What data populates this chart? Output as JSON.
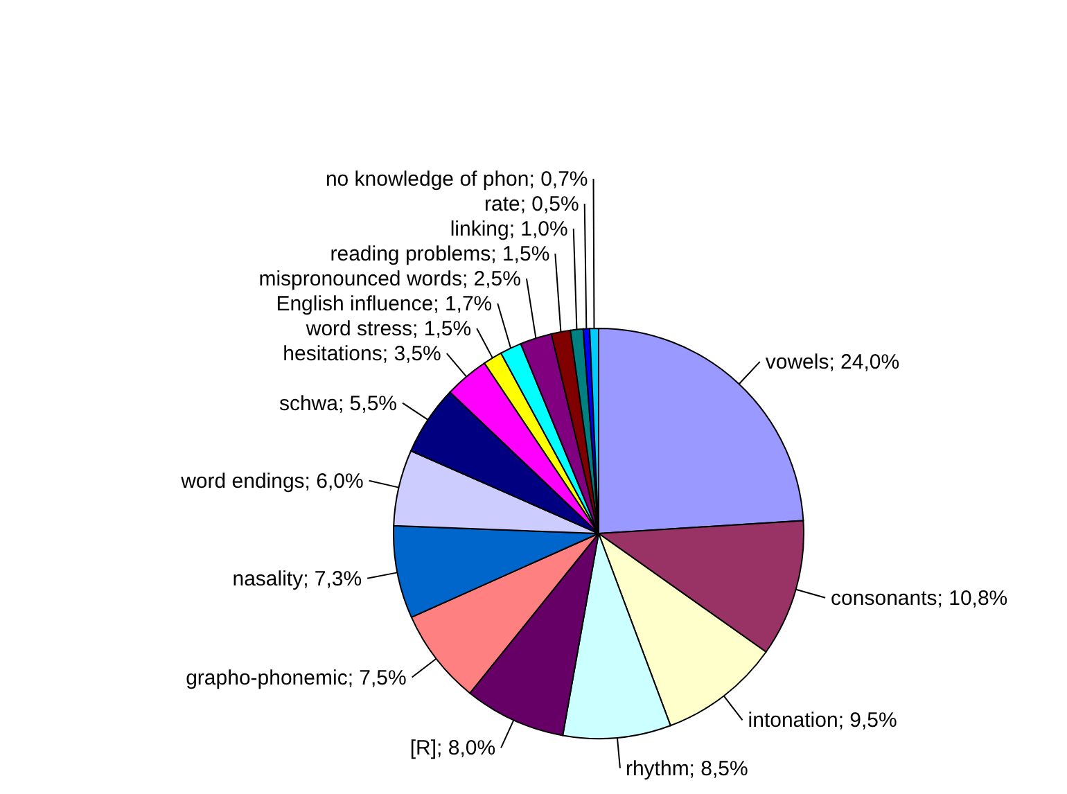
{
  "chart_data": {
    "type": "pie",
    "categories": [
      "vowels",
      "consonants",
      "intonation",
      "rhythm",
      "[R]",
      "grapho-phonemic",
      "nasality",
      "word endings",
      "schwa",
      "hesitations",
      "word stress",
      "English influence",
      "mispronounced words",
      "reading problems",
      "linking",
      "rate",
      "no knowledge of phon"
    ],
    "values": [
      24.0,
      10.8,
      9.5,
      8.5,
      8.0,
      7.5,
      7.3,
      6.0,
      5.5,
      3.5,
      1.5,
      1.7,
      2.5,
      1.5,
      1.0,
      0.5,
      0.7
    ],
    "value_labels": [
      "24,0%",
      "10,8%",
      "9,5%",
      "8,5%",
      "8,0%",
      "7,5%",
      "7,3%",
      "6,0%",
      "5,5%",
      "3,5%",
      "1,5%",
      "1,7%",
      "2,5%",
      "1,5%",
      "1,0%",
      "0,5%",
      "0,7%"
    ],
    "colors": [
      "#9999ff",
      "#993366",
      "#ffffcc",
      "#ccffff",
      "#660066",
      "#ff8080",
      "#0066cc",
      "#ccccff",
      "#000080",
      "#ff00ff",
      "#ffff00",
      "#00ffff",
      "#800080",
      "#800000",
      "#008080",
      "#0000ff",
      "#00ccff"
    ]
  }
}
